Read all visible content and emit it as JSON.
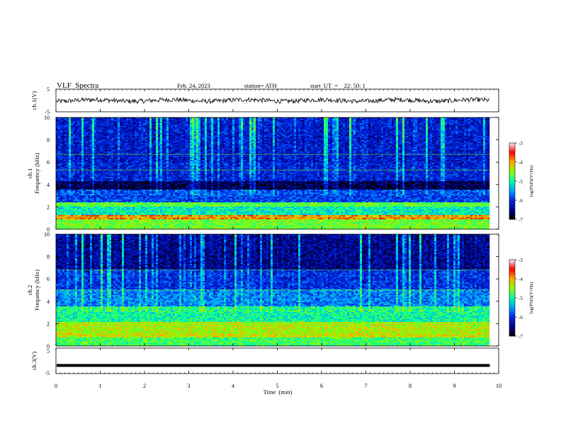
{
  "header": {
    "title": "VLF  Spectra",
    "date": "Feb. 24, 2023",
    "station": "station= ATH",
    "start": "start  UT  =    22: 50: 1"
  },
  "chart_data": [
    {
      "type": "line",
      "name": "ch1-waveform",
      "ylabel": "ch.1(V)",
      "ylim": [
        -5,
        5
      ],
      "yticks": [
        "5",
        "-5"
      ],
      "mean_level": 0,
      "amplitude": 1.0
    },
    {
      "type": "heatmap",
      "name": "ch1-spectrogram",
      "ylabel": "ch.1\nFrequency  (kHz)",
      "ylim": [
        0,
        10
      ],
      "yticks": [
        "0",
        "2",
        "4",
        "6",
        "8",
        "10"
      ],
      "xlim": [
        0,
        10
      ],
      "data_x_end": 9.8,
      "colorbar": {
        "label": "log(PSD)(V²/Hz)",
        "range": [
          -7,
          -3
        ],
        "ticks": [
          "-3",
          "-4",
          "-5",
          "-6",
          "-7"
        ]
      },
      "bands_khz": [
        {
          "range": [
            0,
            0.9
          ],
          "level": -4.6
        },
        {
          "range": [
            0.9,
            1.3
          ],
          "level": -3.9
        },
        {
          "range": [
            1.3,
            2.0
          ],
          "level": -5.1
        },
        {
          "range": [
            2.0,
            2.4
          ],
          "level": -4.7
        },
        {
          "range": [
            2.4,
            3.5
          ],
          "level": -5.9
        },
        {
          "range": [
            3.5,
            4.3
          ],
          "level": -6.8
        },
        {
          "range": [
            4.3,
            6.0
          ],
          "level": -6.2
        },
        {
          "range": [
            6.0,
            10.0
          ],
          "level": -6.3
        }
      ]
    },
    {
      "type": "heatmap",
      "name": "ch2-spectrogram",
      "ylabel": "ch.2\nFrequency  (kHz)",
      "ylim": [
        0,
        10
      ],
      "yticks": [
        "0",
        "2",
        "4",
        "6",
        "8",
        "10"
      ],
      "xlim": [
        0,
        10
      ],
      "data_x_end": 9.8,
      "colorbar": {
        "label": "log(PSD)(V²/Hz)",
        "range": [
          -7,
          -3
        ],
        "ticks": [
          "-3",
          "-4",
          "-5",
          "-6",
          "-7"
        ]
      },
      "bands_khz": [
        {
          "range": [
            0,
            0.7
          ],
          "level": -4.8
        },
        {
          "range": [
            0.7,
            1.2
          ],
          "level": -4.3
        },
        {
          "range": [
            1.2,
            2.2
          ],
          "level": -4.4
        },
        {
          "range": [
            2.2,
            3.5
          ],
          "level": -5.0
        },
        {
          "range": [
            3.5,
            5.0
          ],
          "level": -5.7
        },
        {
          "range": [
            5.0,
            6.8
          ],
          "level": -6.1
        },
        {
          "range": [
            6.8,
            10.0
          ],
          "level": -6.6
        }
      ]
    },
    {
      "type": "line",
      "name": "ch3-waveform",
      "ylabel": "ch.3(V)",
      "ylim": [
        -5,
        5
      ],
      "yticks": [
        "5",
        "0",
        "-5"
      ],
      "mean_level": -1.8,
      "amplitude": 0.05
    }
  ],
  "xaxis": {
    "label": "Time  (min)",
    "ticks": [
      "0",
      "1",
      "2",
      "3",
      "4",
      "5",
      "6",
      "7",
      "8",
      "9",
      "10"
    ]
  }
}
